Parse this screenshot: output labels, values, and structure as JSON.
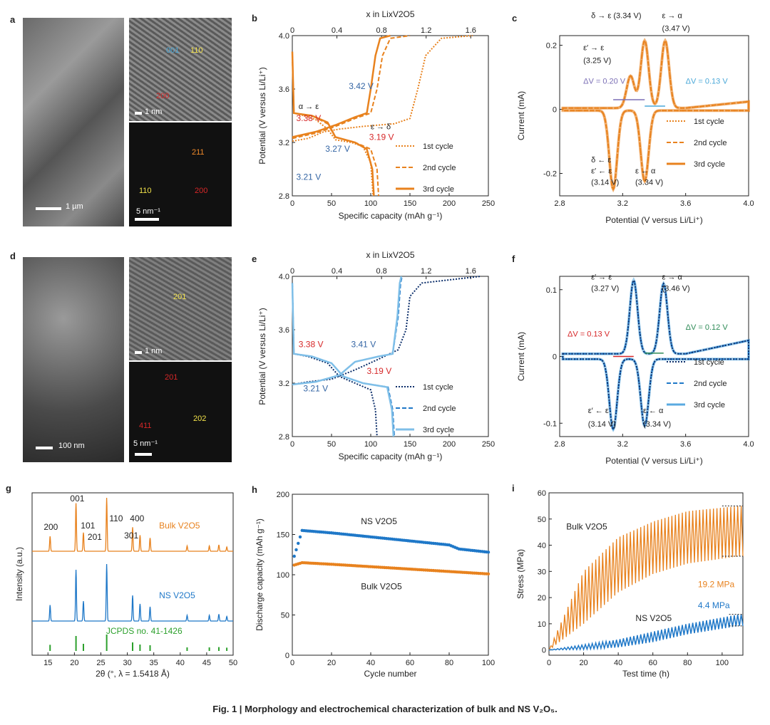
{
  "figure": {
    "caption_prefix": "Fig. 1 |",
    "caption_text": "Morphology and electrochemical characterization of bulk and NS V₂O₅."
  },
  "panels": {
    "a": {
      "letter": "a",
      "sem_scale": "1 µm",
      "hrtem_scale": "1 nm",
      "hrtem_planes": [
        "001",
        "110",
        "200"
      ],
      "saed_scale": "5 nm⁻¹",
      "saed_spots": [
        "211",
        "110",
        "200"
      ]
    },
    "d": {
      "letter": "d",
      "sem_scale": "100 nm",
      "hrtem_scale": "1 nm",
      "hrtem_planes": [
        "201"
      ],
      "saed_scale": "5 nm⁻¹",
      "saed_spots": [
        "201",
        "411",
        "202"
      ]
    }
  },
  "colors": {
    "bulk": "#e8821e",
    "ns": "#1f78c8",
    "ns_dark": "#0d2f6b",
    "jcpds": "#2ca02c",
    "red_label": "#d62728",
    "blue_label": "#3465a4",
    "dv_bulk_left": "#7b6fb5",
    "dv_bulk_right": "#4aa8d8",
    "dv_ns_left": "#d62728",
    "dv_ns_right": "#2e8b57"
  },
  "chart_data": [
    {
      "id": "b",
      "letter": "b",
      "type": "line",
      "xlabel": "Specific capacity (mAh g⁻¹)",
      "ylabel": "Potential (V versus Li/Li⁺)",
      "top_xlabel": "x in LixV2O5",
      "xlim": [
        0,
        250
      ],
      "ylim": [
        2.8,
        4.0
      ],
      "xticks": [
        "0",
        "50",
        "100",
        "150",
        "200",
        "250"
      ],
      "yticks": [
        "2.8",
        "3.2",
        "3.6",
        "4.0"
      ],
      "top_ticks": [
        "0",
        "0.4",
        "0.8",
        "1.2",
        "1.6"
      ],
      "legend": [
        "1st cycle",
        "2nd cycle",
        "3rd cycle"
      ],
      "annotations": [
        "α → ε",
        "3.38 V",
        "3.42 V",
        "ε → δ",
        "3.19 V",
        "3.27 V",
        "3.21 V"
      ],
      "series": [
        {
          "name": "1st cycle",
          "style": "dotted",
          "charge": [
            [
              0,
              3.21
            ],
            [
              20,
              3.23
            ],
            [
              40,
              3.28
            ],
            [
              60,
              3.3
            ],
            [
              90,
              3.32
            ],
            [
              130,
              3.34
            ],
            [
              150,
              3.38
            ],
            [
              160,
              3.6
            ],
            [
              170,
              3.85
            ],
            [
              190,
              3.98
            ],
            [
              230,
              4.0
            ]
          ],
          "discharge": [
            [
              0,
              3.87
            ],
            [
              2,
              3.42
            ],
            [
              15,
              3.4
            ],
            [
              30,
              3.37
            ],
            [
              45,
              3.3
            ],
            [
              55,
              3.22
            ],
            [
              75,
              3.2
            ],
            [
              90,
              3.17
            ],
            [
              100,
              3.05
            ],
            [
              103,
              2.8
            ]
          ]
        },
        {
          "name": "2nd cycle",
          "style": "dashed",
          "charge": [
            [
              0,
              3.23
            ],
            [
              30,
              3.27
            ],
            [
              55,
              3.32
            ],
            [
              80,
              3.38
            ],
            [
              100,
              3.42
            ],
            [
              108,
              3.6
            ],
            [
              115,
              3.85
            ],
            [
              125,
              3.98
            ],
            [
              150,
              4.0
            ]
          ],
          "discharge": [
            [
              0,
              3.85
            ],
            [
              2,
              3.42
            ],
            [
              25,
              3.4
            ],
            [
              45,
              3.34
            ],
            [
              55,
              3.24
            ],
            [
              80,
              3.2
            ],
            [
              100,
              3.15
            ],
            [
              108,
              3.0
            ],
            [
              110,
              2.8
            ]
          ]
        },
        {
          "name": "3rd cycle",
          "style": "solid",
          "charge": [
            [
              0,
              3.24
            ],
            [
              30,
              3.28
            ],
            [
              55,
              3.33
            ],
            [
              80,
              3.39
            ],
            [
              95,
              3.42
            ],
            [
              100,
              3.6
            ],
            [
              106,
              3.85
            ],
            [
              112,
              3.98
            ],
            [
              125,
              4.0
            ]
          ],
          "discharge": [
            [
              0,
              3.88
            ],
            [
              2,
              3.42
            ],
            [
              25,
              3.4
            ],
            [
              45,
              3.35
            ],
            [
              55,
              3.24
            ],
            [
              80,
              3.2
            ],
            [
              95,
              3.15
            ],
            [
              102,
              3.0
            ],
            [
              104,
              2.8
            ]
          ]
        }
      ]
    },
    {
      "id": "c",
      "letter": "c",
      "type": "line",
      "xlabel": "Potential (V versus Li/Li⁺)",
      "ylabel": "Current (mA)",
      "xlim": [
        2.8,
        4.0
      ],
      "ylim": [
        -0.27,
        0.23
      ],
      "xticks": [
        "2.8",
        "3.2",
        "3.6",
        "4.0"
      ],
      "yticks": [
        "-0.2",
        "0",
        "0.2"
      ],
      "legend": [
        "1st cycle",
        "2nd cycle",
        "3rd cycle"
      ],
      "annotations": [
        "δ → ε (3.34 V)",
        "ε → α",
        "(3.47 V)",
        "ε′ → ε",
        "(3.25 V)",
        "ΔV = 0.20 V",
        "ΔV = 0.13 V",
        "δ ← ε",
        "ε′ ← ε",
        "(3.14 V)",
        "ε ← α",
        "(3.34 V)"
      ],
      "peaks": {
        "ox": [
          [
            3.25,
            0.1
          ],
          [
            3.34,
            0.21
          ],
          [
            3.47,
            0.21
          ]
        ],
        "red": [
          [
            3.14,
            -0.245
          ],
          [
            3.34,
            -0.22
          ]
        ]
      }
    },
    {
      "id": "e",
      "letter": "e",
      "type": "line",
      "xlabel": "Specific capacity (mAh g⁻¹)",
      "ylabel": "Potential (V versus Li/Li⁺)",
      "top_xlabel": "x in LixV2O5",
      "xlim": [
        0,
        250
      ],
      "ylim": [
        2.8,
        4.0
      ],
      "xticks": [
        "0",
        "50",
        "100",
        "150",
        "200",
        "250"
      ],
      "yticks": [
        "2.8",
        "3.2",
        "3.6",
        "4.0"
      ],
      "top_ticks": [
        "0",
        "0.4",
        "0.8",
        "1.2",
        "1.6"
      ],
      "legend": [
        "1st cycle",
        "2nd cycle",
        "3rd cycle"
      ],
      "annotations": [
        "3.38 V",
        "3.41 V",
        "3.19 V",
        "3.21 V"
      ],
      "series": [
        {
          "name": "1st cycle",
          "style": "dotted",
          "charge": [
            [
              0,
              3.19
            ],
            [
              20,
              3.21
            ],
            [
              50,
              3.23
            ],
            [
              80,
              3.3
            ],
            [
              110,
              3.38
            ],
            [
              135,
              3.45
            ],
            [
              145,
              3.6
            ],
            [
              150,
              3.85
            ],
            [
              165,
              3.95
            ],
            [
              240,
              4.0
            ]
          ],
          "discharge": [
            [
              0,
              3.95
            ],
            [
              2,
              3.42
            ],
            [
              20,
              3.4
            ],
            [
              45,
              3.35
            ],
            [
              60,
              3.25
            ],
            [
              80,
              3.2
            ],
            [
              100,
              3.15
            ],
            [
              106,
              3.0
            ],
            [
              108,
              2.8
            ]
          ]
        },
        {
          "name": "2nd cycle",
          "style": "dashed",
          "charge": [
            [
              0,
              3.19
            ],
            [
              30,
              3.21
            ],
            [
              60,
              3.26
            ],
            [
              80,
              3.36
            ],
            [
              110,
              3.4
            ],
            [
              128,
              3.42
            ],
            [
              135,
              3.7
            ],
            [
              138,
              3.95
            ],
            [
              140,
              4.0
            ]
          ],
          "discharge": [
            [
              0,
              3.95
            ],
            [
              2,
              3.42
            ],
            [
              25,
              3.4
            ],
            [
              50,
              3.35
            ],
            [
              65,
              3.25
            ],
            [
              90,
              3.2
            ],
            [
              122,
              3.17
            ],
            [
              128,
              3.0
            ],
            [
              130,
              2.8
            ]
          ]
        },
        {
          "name": "3rd cycle",
          "style": "solid",
          "charge": [
            [
              0,
              3.19
            ],
            [
              30,
              3.21
            ],
            [
              60,
              3.26
            ],
            [
              80,
              3.36
            ],
            [
              110,
              3.4
            ],
            [
              128,
              3.42
            ],
            [
              134,
              3.7
            ],
            [
              137,
              3.95
            ],
            [
              139,
              4.0
            ]
          ],
          "discharge": [
            [
              0,
              3.95
            ],
            [
              2,
              3.42
            ],
            [
              25,
              3.4
            ],
            [
              50,
              3.35
            ],
            [
              65,
              3.25
            ],
            [
              90,
              3.2
            ],
            [
              121,
              3.17
            ],
            [
              127,
              3.0
            ],
            [
              129,
              2.8
            ]
          ]
        }
      ]
    },
    {
      "id": "f",
      "letter": "f",
      "type": "line",
      "xlabel": "Potential (V versus Li/Li⁺)",
      "ylabel": "Current (mA)",
      "xlim": [
        2.8,
        4.0
      ],
      "ylim": [
        -0.12,
        0.12
      ],
      "xticks": [
        "2.8",
        "3.2",
        "3.6",
        "4.0"
      ],
      "yticks": [
        "-0.1",
        "0",
        "0.1"
      ],
      "legend": [
        "1st cycle",
        "2nd cycle",
        "3rd cycle"
      ],
      "annotations": [
        "ε′ → ε",
        "(3.27 V)",
        "ε → α",
        "(3.46 V)",
        "ΔV = 0.13 V",
        "ΔV = 0.12 V",
        "ε′ ← ε",
        "(3.14 V)",
        "ε ← α",
        "(3.34 V)"
      ],
      "peaks": {
        "ox": [
          [
            3.27,
            0.11
          ],
          [
            3.46,
            0.105
          ]
        ],
        "red": [
          [
            3.14,
            -0.105
          ],
          [
            3.34,
            -0.1
          ]
        ]
      }
    },
    {
      "id": "g",
      "letter": "g",
      "type": "line",
      "xlabel": "2θ (°, λ = 1.5418 Å)",
      "ylabel": "Intensity (a.u.)",
      "xlim": [
        12,
        50
      ],
      "xticks": [
        "15",
        "20",
        "25",
        "30",
        "35",
        "40",
        "45",
        "50"
      ],
      "series_labels": [
        "Bulk V2O5",
        "NS V2O5",
        "JCPDS no. 41-1426"
      ],
      "peak_labels": [
        "200",
        "001",
        "101",
        "201",
        "110",
        "301",
        "400"
      ],
      "peaks_2theta": [
        15.4,
        20.3,
        21.7,
        26.1,
        31.0,
        32.4,
        34.3,
        41.3,
        45.5,
        47.3,
        48.8
      ]
    },
    {
      "id": "h",
      "letter": "h",
      "type": "scatter",
      "xlabel": "Cycle number",
      "ylabel": "Discharge capacity (mAh g⁻¹)",
      "xlim": [
        0,
        100
      ],
      "ylim": [
        0,
        200
      ],
      "xticks": [
        "0",
        "20",
        "40",
        "60",
        "80",
        "100"
      ],
      "yticks": [
        "0",
        "50",
        "100",
        "150",
        "200"
      ],
      "series": [
        {
          "name": "NS V2O5",
          "values_at": [
            [
              1,
              123
            ],
            [
              5,
              155
            ],
            [
              20,
              152
            ],
            [
              40,
              147
            ],
            [
              60,
              142
            ],
            [
              80,
              137
            ],
            [
              85,
              132
            ],
            [
              100,
              128
            ]
          ]
        },
        {
          "name": "Bulk V2O5",
          "values_at": [
            [
              1,
              112
            ],
            [
              5,
              115
            ],
            [
              20,
              113
            ],
            [
              40,
              110
            ],
            [
              60,
              107
            ],
            [
              80,
              104
            ],
            [
              100,
              101
            ]
          ]
        }
      ]
    },
    {
      "id": "i",
      "letter": "i",
      "type": "line",
      "xlabel": "Test time (h)",
      "ylabel": "Stress (MPa)",
      "xlim": [
        0,
        112
      ],
      "ylim": [
        -2,
        60
      ],
      "xticks": [
        "0",
        "20",
        "40",
        "60",
        "80",
        "100"
      ],
      "yticks": [
        "0",
        "10",
        "20",
        "30",
        "40",
        "50",
        "60"
      ],
      "series_labels": [
        "Bulk V2O5",
        "NS V2O5"
      ],
      "annotations": [
        "19.2 MPa",
        "4.4 MPa"
      ],
      "bulk_envelope": {
        "upper": [
          [
            0,
            0
          ],
          [
            20,
            30
          ],
          [
            40,
            43
          ],
          [
            60,
            49
          ],
          [
            80,
            53
          ],
          [
            110,
            55
          ]
        ],
        "lower": [
          [
            0,
            0
          ],
          [
            20,
            10
          ],
          [
            40,
            22
          ],
          [
            60,
            29
          ],
          [
            80,
            33
          ],
          [
            110,
            35.8
          ]
        ]
      },
      "ns_envelope": {
        "upper": [
          [
            0,
            0
          ],
          [
            20,
            2
          ],
          [
            40,
            4
          ],
          [
            60,
            7
          ],
          [
            80,
            10
          ],
          [
            110,
            13.6
          ]
        ],
        "lower": [
          [
            0,
            0
          ],
          [
            20,
            0.2
          ],
          [
            40,
            1
          ],
          [
            60,
            3
          ],
          [
            80,
            6
          ],
          [
            110,
            9.2
          ]
        ]
      }
    }
  ]
}
